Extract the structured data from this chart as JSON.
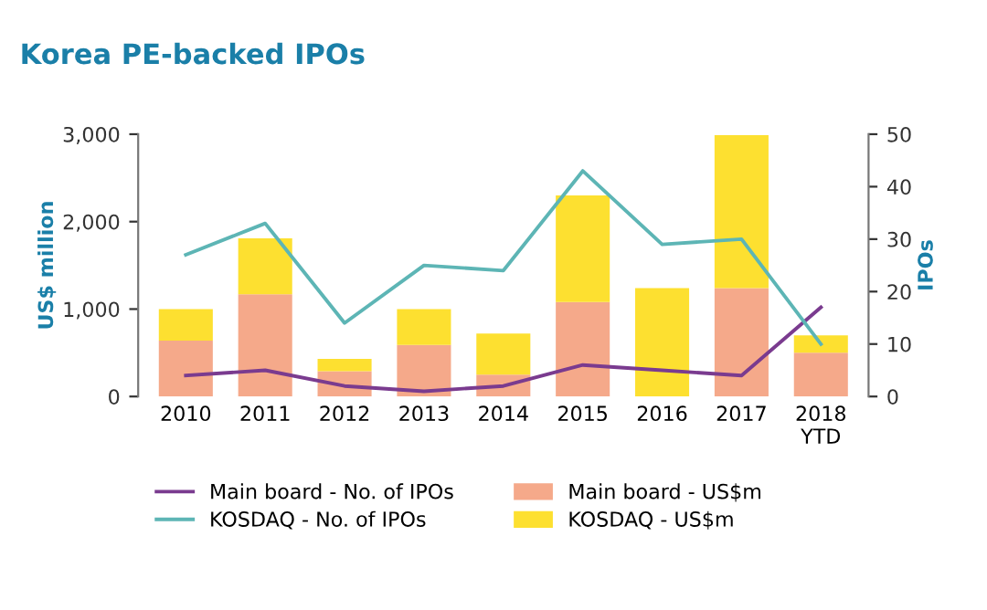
{
  "chart_data": {
    "type": "bar",
    "title": "Korea PE-backed IPOs",
    "ylabel": "US$ million",
    "y2label": "IPOs",
    "categories": [
      "2010",
      "2011",
      "2012",
      "2013",
      "2014",
      "2015",
      "2016",
      "2017",
      "2018\nYTD"
    ],
    "stacked": true,
    "series": [
      {
        "name": "Main board - US$m",
        "color": "#f5a98a",
        "values": [
          640,
          1170,
          290,
          590,
          250,
          1080,
          0,
          1240,
          500
        ]
      },
      {
        "name": "KOSDAQ - US$m",
        "color": "#fde030",
        "values": [
          360,
          640,
          140,
          410,
          470,
          1220,
          1240,
          1750,
          200
        ]
      },
      {
        "name": "Main board - No. of IPOs",
        "type": "line",
        "axis": "y2",
        "color": "#7a3b8f",
        "values": [
          4,
          5,
          2,
          1,
          2,
          6,
          5,
          4,
          17
        ]
      },
      {
        "name": "KOSDAQ - No. of IPOs",
        "type": "line",
        "axis": "y2",
        "color": "#5db5b5",
        "values": [
          27,
          33,
          14,
          25,
          24,
          43,
          29,
          30,
          10
        ]
      }
    ],
    "ylim": [
      0,
      3000
    ],
    "yticks": [
      {
        "value": 0,
        "label": "0"
      },
      {
        "value": 1000,
        "label": "1,000"
      },
      {
        "value": 2000,
        "label": "2,000"
      },
      {
        "value": 3000,
        "label": "3,000"
      }
    ],
    "y2lim": [
      0,
      50
    ],
    "y2ticks": [
      0,
      10,
      20,
      30,
      40,
      50
    ],
    "grid": false,
    "legend": "bottom",
    "marker": "none",
    "line_style": "solid"
  }
}
